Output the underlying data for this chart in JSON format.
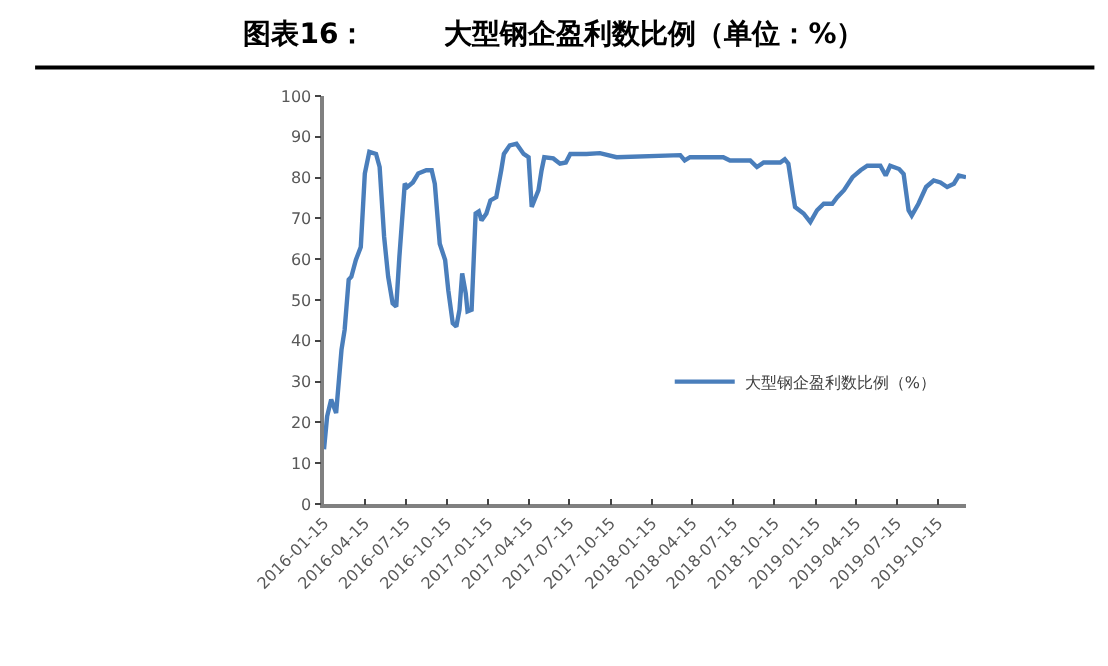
{
  "chart_data": {
    "type": "line",
    "title": "图表16：        大型钢企盈利数比例（单位：%）",
    "x": [
      "2016-01-15",
      "2016-01-22",
      "2016-01-31",
      "2016-02-11",
      "2016-02-23",
      "2016-03-01",
      "2016-03-10",
      "2016-03-16",
      "2016-03-26",
      "2016-04-06",
      "2016-04-15",
      "2016-04-25",
      "2016-05-10",
      "2016-05-18",
      "2016-05-28",
      "2016-06-06",
      "2016-06-16",
      "2016-06-24",
      "2016-07-01",
      "2016-07-13",
      "2016-07-19",
      "2016-07-31",
      "2016-08-12",
      "2016-08-30",
      "2016-09-11",
      "2016-09-18",
      "2016-09-29",
      "2016-10-11",
      "2016-10-18",
      "2016-10-28",
      "2016-11-05",
      "2016-11-12",
      "2016-11-18",
      "2016-11-26",
      "2016-11-30",
      "2016-12-09",
      "2016-12-18",
      "2016-12-25",
      "2016-12-31",
      "2017-01-11",
      "2017-01-20",
      "2017-02-02",
      "2017-02-13",
      "2017-02-19",
      "2017-03-04",
      "2017-03-19",
      "2017-04-04",
      "2017-04-15",
      "2017-04-22",
      "2017-05-07",
      "2017-05-14",
      "2017-05-20",
      "2017-06-09",
      "2017-06-24",
      "2017-07-07",
      "2017-07-17",
      "2017-08-22",
      "2017-09-21",
      "2017-10-28",
      "2018-03-19",
      "2018-03-29",
      "2018-04-10",
      "2018-06-23",
      "2018-07-08",
      "2018-08-22",
      "2018-09-06",
      "2018-09-21",
      "2018-10-28",
      "2018-11-07",
      "2018-11-15",
      "2018-11-24",
      "2018-11-30",
      "2018-12-19",
      "2019-01-03",
      "2019-01-18",
      "2019-02-02",
      "2019-02-21",
      "2019-03-04",
      "2019-03-19",
      "2019-04-07",
      "2019-04-25",
      "2019-05-10",
      "2019-06-08",
      "2019-06-20",
      "2019-06-30",
      "2019-07-20",
      "2019-07-30",
      "2019-08-10",
      "2019-08-17",
      "2019-09-01",
      "2019-09-18",
      "2019-10-05",
      "2019-10-20",
      "2019-11-04",
      "2019-11-19",
      "2019-11-30",
      "2019-12-16"
    ],
    "series": [
      {
        "name": "大型钢企盈利数比例（%）",
        "color": "#4a7ebb",
        "values": [
          13.4,
          21.5,
          25.6,
          22.3,
          37.8,
          42.7,
          55,
          55.7,
          59.8,
          63,
          81,
          86.3,
          85.8,
          82.6,
          65.5,
          55.7,
          49.2,
          48.4,
          60.6,
          78.5,
          77.7,
          78.8,
          81,
          81.8,
          81.8,
          78.5,
          63.8,
          59.8,
          52.4,
          44.3,
          43.5,
          47.6,
          56.5,
          51.6,
          47.2,
          47.6,
          71.2,
          71.7,
          69.5,
          71.2,
          74.4,
          75.2,
          81.8,
          85.8,
          87.9,
          88.3,
          85.8,
          85,
          72.8,
          76.9,
          81.8,
          85,
          84.7,
          83.4,
          83.7,
          85.8,
          85.8,
          86,
          85,
          85.5,
          84.2,
          85,
          85,
          84.2,
          84.2,
          82.6,
          83.7,
          83.7,
          84.5,
          83.4,
          76.9,
          72.8,
          71.2,
          69.1,
          72,
          73.6,
          73.6,
          75.2,
          76.9,
          80.1,
          81.8,
          82.9,
          82.9,
          80.5,
          82.9,
          82.1,
          80.9,
          72,
          70.7,
          73.6,
          77.7,
          79.3,
          78.8,
          77.7,
          78.5,
          80.5,
          80.1
        ]
      }
    ],
    "xlim": [
      "2016-01-15",
      "2019-12-16"
    ],
    "xticks": [
      {
        "value": "2016-01-15",
        "label": "2016-01-15"
      },
      {
        "value": "2016-04-15",
        "label": "2016-04-15"
      },
      {
        "value": "2016-07-15",
        "label": "2016-07-15"
      },
      {
        "value": "2016-10-15",
        "label": "2016-10-15"
      },
      {
        "value": "2017-01-15",
        "label": "2017-01-15"
      },
      {
        "value": "2017-04-15",
        "label": "2017-04-15"
      },
      {
        "value": "2017-07-15",
        "label": "2017-07-15"
      },
      {
        "value": "2017-10-15",
        "label": "2017-10-15"
      },
      {
        "value": "2018-01-15",
        "label": "2018-01-15"
      },
      {
        "value": "2018-04-15",
        "label": "2018-04-15"
      },
      {
        "value": "2018-07-15",
        "label": "2018-07-15"
      },
      {
        "value": "2018-10-15",
        "label": "2018-10-15"
      },
      {
        "value": "2019-01-15",
        "label": "2019-01-15"
      },
      {
        "value": "2019-04-15",
        "label": "2019-04-15"
      },
      {
        "value": "2019-07-15",
        "label": "2019-07-15"
      },
      {
        "value": "2019-10-15",
        "label": "2019-10-15"
      }
    ],
    "ylim": [
      0,
      100
    ],
    "yticks": [
      0,
      10,
      20,
      30,
      40,
      50,
      60,
      70,
      80,
      90,
      100
    ],
    "legend": "bottom right",
    "marker": "none",
    "line_style": "solid"
  }
}
